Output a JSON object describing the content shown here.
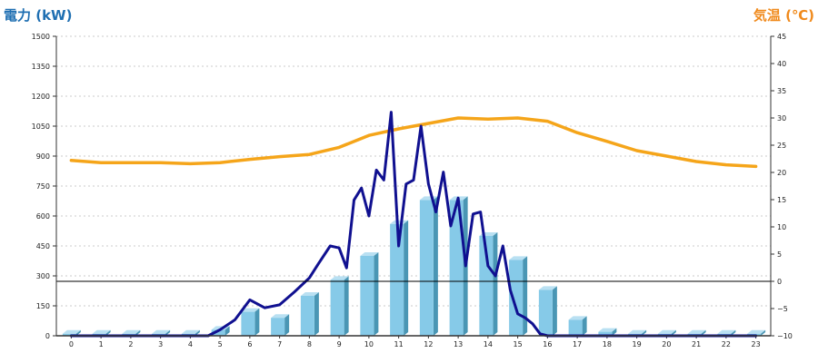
{
  "chart_data": {
    "type": "bar",
    "left_axis_title": "電力 (kW)",
    "right_axis_title": "気温 (℃)",
    "left_axis": {
      "ylim": [
        0,
        1500
      ],
      "ticks": [
        "0",
        "150",
        "300",
        "450",
        "600",
        "750",
        "900",
        "1050",
        "1200",
        "1350",
        "1500"
      ]
    },
    "right_axis": {
      "ylim": [
        -10,
        45
      ],
      "ticks": [
        "−10",
        "−5",
        "0",
        "5",
        "10",
        "15",
        "20",
        "25",
        "30",
        "35",
        "40",
        "45"
      ]
    },
    "categories": [
      "0",
      "1",
      "2",
      "3",
      "4",
      "5",
      "6",
      "7",
      "8",
      "9",
      "10",
      "11",
      "12",
      "13",
      "14",
      "15",
      "16",
      "17",
      "18",
      "19",
      "20",
      "21",
      "22",
      "23"
    ],
    "grid": "horizontal dotted",
    "reference_line_right_axis": 0,
    "series": [
      {
        "kind": "bar",
        "axis": "left",
        "values": [
          10,
          10,
          10,
          10,
          10,
          30,
          120,
          90,
          200,
          280,
          400,
          560,
          680,
          680,
          500,
          380,
          230,
          80,
          20,
          10,
          10,
          10,
          10,
          10
        ]
      },
      {
        "kind": "line",
        "axis": "left",
        "x": [
          0,
          1,
          2,
          3,
          4,
          4.6,
          5,
          5.5,
          6,
          6.5,
          7,
          7.5,
          8,
          8.3,
          8.7,
          9,
          9.25,
          9.5,
          9.75,
          10,
          10.25,
          10.5,
          10.75,
          11,
          11.25,
          11.5,
          11.75,
          12,
          12.25,
          12.5,
          12.75,
          13,
          13.25,
          13.5,
          13.75,
          14,
          14.25,
          14.5,
          14.75,
          15,
          15.25,
          15.5,
          15.75,
          16,
          16.3,
          16.6,
          17,
          17.5,
          18,
          19,
          20,
          21,
          22,
          23
        ],
        "values": [
          0,
          0,
          0,
          0,
          0,
          0,
          30,
          80,
          180,
          140,
          155,
          220,
          290,
          360,
          450,
          440,
          340,
          680,
          740,
          600,
          830,
          780,
          1120,
          450,
          760,
          780,
          1050,
          760,
          620,
          820,
          550,
          690,
          350,
          610,
          620,
          350,
          300,
          450,
          230,
          110,
          90,
          60,
          10,
          0,
          0,
          0,
          0,
          0,
          0,
          0,
          0,
          0,
          0,
          0
        ]
      },
      {
        "kind": "line",
        "axis": "right",
        "x": [
          0,
          1,
          2,
          3,
          4,
          5,
          6,
          7,
          8,
          9,
          10,
          11,
          12,
          13,
          14,
          15,
          16,
          17,
          18,
          19,
          20,
          21,
          22,
          23
        ],
        "values": [
          22.2,
          21.8,
          21.8,
          21.8,
          21.6,
          21.8,
          22.4,
          22.9,
          23.3,
          24.6,
          26.8,
          28.0,
          29.0,
          30.0,
          29.8,
          30.0,
          29.4,
          27.3,
          25.7,
          24.0,
          23.0,
          22.0,
          21.4,
          21.1
        ]
      }
    ],
    "colors": {
      "bar_front": "#86cae8",
      "bar_side": "#4a96b4",
      "bar_top": "#b9e0f2",
      "power_line": "#101090",
      "temperature_line": "#f5a51a",
      "left_title": "#1f6fb2",
      "right_title": "#f08a1c",
      "grid": "#bbbbbb"
    }
  }
}
